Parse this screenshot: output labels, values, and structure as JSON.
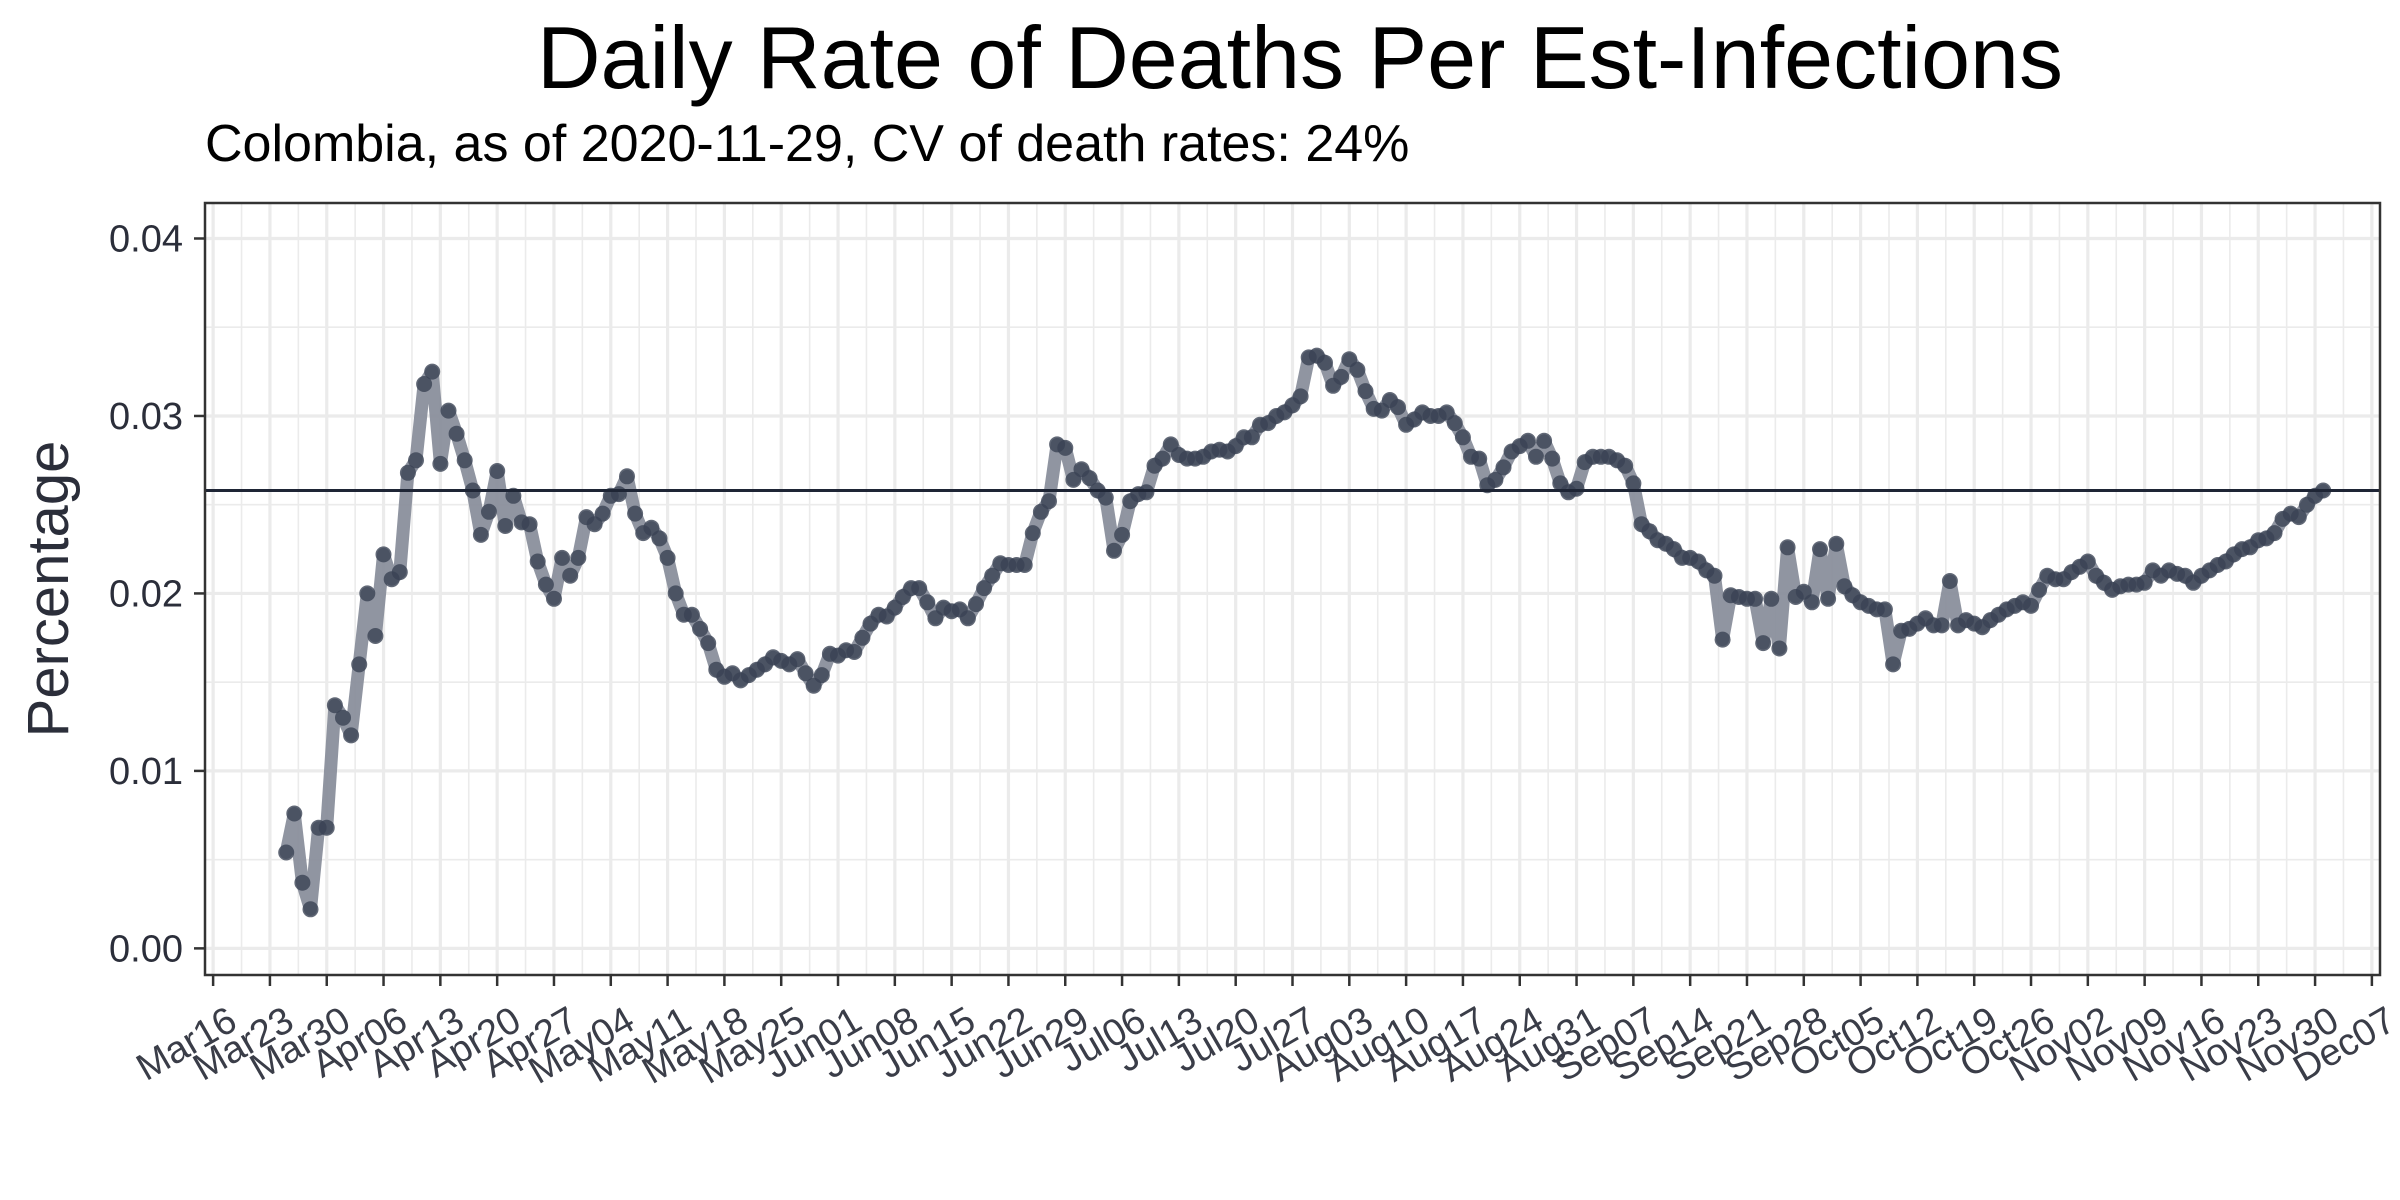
{
  "chart_data": {
    "type": "line",
    "title": "Daily Rate of Deaths Per Est-Infections",
    "subtitle": "Colombia, as of 2020-11-29, CV of death rates: 24%",
    "xlabel": "",
    "ylabel": "Percentage",
    "x_start_date": "2020-03-16",
    "xlim_days": [
      -1,
      267
    ],
    "ylim": [
      -0.0015,
      0.042
    ],
    "yticks": [
      0.0,
      0.01,
      0.02,
      0.03,
      0.04
    ],
    "ytick_labels": [
      "0.00",
      "0.01",
      "0.02",
      "0.03",
      "0.04"
    ],
    "xtick_labels": [
      "Mar16",
      "Mar23",
      "Mar30",
      "Apr06",
      "Apr13",
      "Apr20",
      "Apr27",
      "May04",
      "May11",
      "May18",
      "May25",
      "Jun01",
      "Jun08",
      "Jun15",
      "Jun22",
      "Jun29",
      "Jul06",
      "Jul13",
      "Jul20",
      "Jul27",
      "Aug03",
      "Aug10",
      "Aug17",
      "Aug24",
      "Aug31",
      "Sep07",
      "Sep14",
      "Sep21",
      "Sep28",
      "Oct05",
      "Oct12",
      "Oct19",
      "Oct26",
      "Nov02",
      "Nov09",
      "Nov16",
      "Nov23",
      "Nov30",
      "Dec07"
    ],
    "reference_line": 0.0258,
    "grid": true,
    "colors": {
      "line": "#8a8f9c",
      "point": "#3a4254",
      "ref_line": "#1e2535",
      "grid": "#ebebeb",
      "border": "#333333"
    },
    "series": [
      {
        "start_date": "2020-03-25",
        "values": [
          0.0054,
          0.0076,
          0.0037,
          0.0022,
          0.0068,
          0.0068,
          0.0137,
          0.013,
          0.012,
          0.016,
          0.02,
          0.0176,
          0.0222,
          0.0208,
          0.0212,
          0.0268,
          0.0275,
          0.0318,
          0.0325,
          0.0273,
          0.0303,
          0.029,
          0.0275,
          0.0258,
          0.0233,
          0.0246,
          0.0269,
          0.0238,
          0.0255,
          0.024,
          0.0239,
          0.0218,
          0.0205,
          0.0197,
          0.022,
          0.021,
          0.022,
          0.0243,
          0.0239,
          0.0245,
          0.0255,
          0.0256,
          0.0266,
          0.0245,
          0.0234,
          0.0237,
          0.0231,
          0.022,
          0.02,
          0.0188,
          0.0188,
          0.018,
          0.0172,
          0.0157,
          0.0153,
          0.0155,
          0.0151,
          0.0154,
          0.0157,
          0.016,
          0.0164,
          0.0162,
          0.016,
          0.0163,
          0.0155,
          0.0148,
          0.0154,
          0.0166,
          0.0165,
          0.0168,
          0.0167,
          0.0175,
          0.0183,
          0.0188,
          0.0187,
          0.0192,
          0.0198,
          0.0203,
          0.0203,
          0.0195,
          0.0186,
          0.0192,
          0.019,
          0.0191,
          0.0186,
          0.0194,
          0.0203,
          0.021,
          0.0217,
          0.0216,
          0.0216,
          0.0216,
          0.0234,
          0.0246,
          0.0252,
          0.0284,
          0.0282,
          0.0264,
          0.027,
          0.0265,
          0.0258,
          0.0254,
          0.0224,
          0.0233,
          0.0252,
          0.0256,
          0.0257,
          0.0272,
          0.0276,
          0.0284,
          0.0278,
          0.0276,
          0.0276,
          0.0277,
          0.028,
          0.0281,
          0.028,
          0.0283,
          0.0288,
          0.0288,
          0.0295,
          0.0296,
          0.03,
          0.0302,
          0.0306,
          0.0311,
          0.0333,
          0.0334,
          0.033,
          0.0317,
          0.0322,
          0.0332,
          0.0326,
          0.0314,
          0.0304,
          0.0303,
          0.0309,
          0.0305,
          0.0295,
          0.0298,
          0.0302,
          0.03,
          0.03,
          0.0302,
          0.0296,
          0.0288,
          0.0277,
          0.0276,
          0.0261,
          0.0264,
          0.0271,
          0.028,
          0.0283,
          0.0286,
          0.0277,
          0.0286,
          0.0276,
          0.0262,
          0.0257,
          0.0259,
          0.0274,
          0.0277,
          0.0277,
          0.0277,
          0.0275,
          0.0272,
          0.0262,
          0.0239,
          0.0235,
          0.023,
          0.0228,
          0.0225,
          0.022,
          0.022,
          0.0218,
          0.0213,
          0.021,
          0.0174,
          0.0199,
          0.0198,
          0.0197,
          0.0197,
          0.0172,
          0.0197,
          0.0169,
          0.0226,
          0.0198,
          0.0201,
          0.0195,
          0.0225,
          0.0197,
          0.0228,
          0.0204,
          0.0199,
          0.0195,
          0.0193,
          0.0191,
          0.0191,
          0.016,
          0.0179,
          0.018,
          0.0183,
          0.0186,
          0.0182,
          0.0182,
          0.0207,
          0.0182,
          0.0185,
          0.0183,
          0.0181,
          0.0185,
          0.0188,
          0.0191,
          0.0193,
          0.0195,
          0.0193,
          0.0202,
          0.021,
          0.0208,
          0.0208,
          0.0212,
          0.0215,
          0.0218,
          0.021,
          0.0206,
          0.0202,
          0.0204,
          0.0205,
          0.0205,
          0.0206,
          0.0213,
          0.021,
          0.0213,
          0.0211,
          0.021,
          0.0206,
          0.021,
          0.0213,
          0.0216,
          0.0218,
          0.0222,
          0.0225,
          0.0226,
          0.023,
          0.0231,
          0.0234,
          0.0242,
          0.0245,
          0.0243,
          0.025,
          0.0255,
          0.0258
        ]
      }
    ]
  }
}
